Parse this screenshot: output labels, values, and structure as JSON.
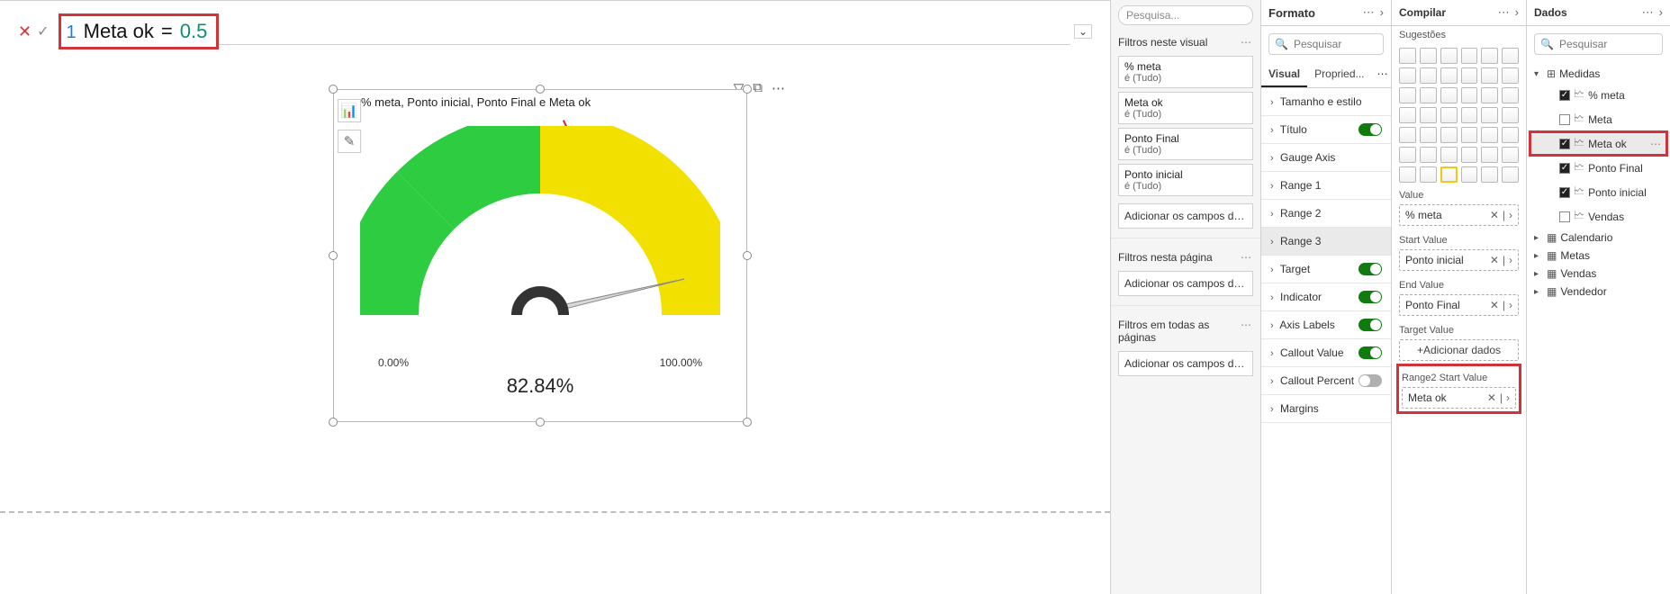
{
  "formula": {
    "ln": "1",
    "name": "Meta ok",
    "eq": "=",
    "value": "0.5"
  },
  "visual": {
    "title": "% meta, Ponto inicial, Ponto Final e Meta ok",
    "value_label": "82.84%",
    "min_label": "0.00%",
    "max_label": "100.00%",
    "gauge": {
      "value_deg": 298,
      "split_deg": 180,
      "color1": "#2ecc40",
      "color2": "#f2e100",
      "bg_ring": "#ffffff",
      "needle": "#333333",
      "needle_arc": "#333333"
    }
  },
  "toolbar": {
    "filter": "▽",
    "focus": "⧉",
    "more": "⋯"
  },
  "side_icons": {
    "i1": "📊",
    "i2": "✎"
  },
  "filters": {
    "search": "Pesquisa...",
    "sec1": "Filtros neste visual",
    "items": [
      {
        "t": "% meta",
        "s": "é (Tudo)"
      },
      {
        "t": "Meta ok",
        "s": "é (Tudo)"
      },
      {
        "t": "Ponto Final",
        "s": "é (Tudo)"
      },
      {
        "t": "Ponto inicial",
        "s": "é (Tudo)"
      }
    ],
    "add": "Adicionar os campos de da...",
    "sec2": "Filtros nesta página",
    "sec3": "Filtros em todas as páginas"
  },
  "formato": {
    "title": "Formato",
    "search": "Pesquisar",
    "tabs": {
      "visual": "Visual",
      "prop": "Propried..."
    },
    "rows": [
      {
        "t": "Tamanho e estilo",
        "tog": null
      },
      {
        "t": "Título",
        "tog": "on"
      },
      {
        "t": "Gauge Axis",
        "tog": null
      },
      {
        "t": "Range 1",
        "tog": null
      },
      {
        "t": "Range 2",
        "tog": null
      },
      {
        "t": "Range 3",
        "tog": null,
        "sel": true
      },
      {
        "t": "Target",
        "tog": "on"
      },
      {
        "t": "Indicator",
        "tog": "on"
      },
      {
        "t": "Axis Labels",
        "tog": "on"
      },
      {
        "t": "Callout Value",
        "tog": "on"
      },
      {
        "t": "Callout Percent",
        "tog": "off"
      },
      {
        "t": "Margins",
        "tog": null
      }
    ]
  },
  "compilar": {
    "title": "Compilar",
    "sug": "Sugestões",
    "wells": [
      {
        "lbl": "Value",
        "v": "% meta"
      },
      {
        "lbl": "Start Value",
        "v": "Ponto inicial"
      },
      {
        "lbl": "End Value",
        "v": "Ponto Final"
      },
      {
        "lbl": "Target Value",
        "v": "+Adicionar dados",
        "btn": true
      },
      {
        "lbl": "Range2 Start Value",
        "v": "Meta ok",
        "hl": true
      }
    ]
  },
  "dados": {
    "title": "Dados",
    "search": "Pesquisar",
    "tree": [
      {
        "lvl": 0,
        "ar": "v",
        "ic": "⊞",
        "t": "Medidas",
        "cb": null
      },
      {
        "lvl": 1,
        "cb": true,
        "calc": true,
        "t": "% meta"
      },
      {
        "lvl": 1,
        "cb": false,
        "calc": true,
        "t": "Meta"
      },
      {
        "lvl": 1,
        "cb": true,
        "calc": true,
        "t": "Meta ok",
        "hl": true,
        "sel": true,
        "more": true
      },
      {
        "lvl": 1,
        "cb": true,
        "calc": true,
        "t": "Ponto Final"
      },
      {
        "lvl": 1,
        "cb": true,
        "calc": true,
        "t": "Ponto inicial"
      },
      {
        "lvl": 1,
        "cb": false,
        "calc": true,
        "t": "Vendas"
      },
      {
        "lvl": 0,
        "ar": ">",
        "ic": "▦",
        "t": "Calendario"
      },
      {
        "lvl": 0,
        "ar": ">",
        "ic": "▦",
        "t": "Metas"
      },
      {
        "lvl": 0,
        "ar": ">",
        "ic": "▦",
        "t": "Vendas"
      },
      {
        "lvl": 0,
        "ar": ">",
        "ic": "▦",
        "t": "Vendedor"
      }
    ]
  }
}
